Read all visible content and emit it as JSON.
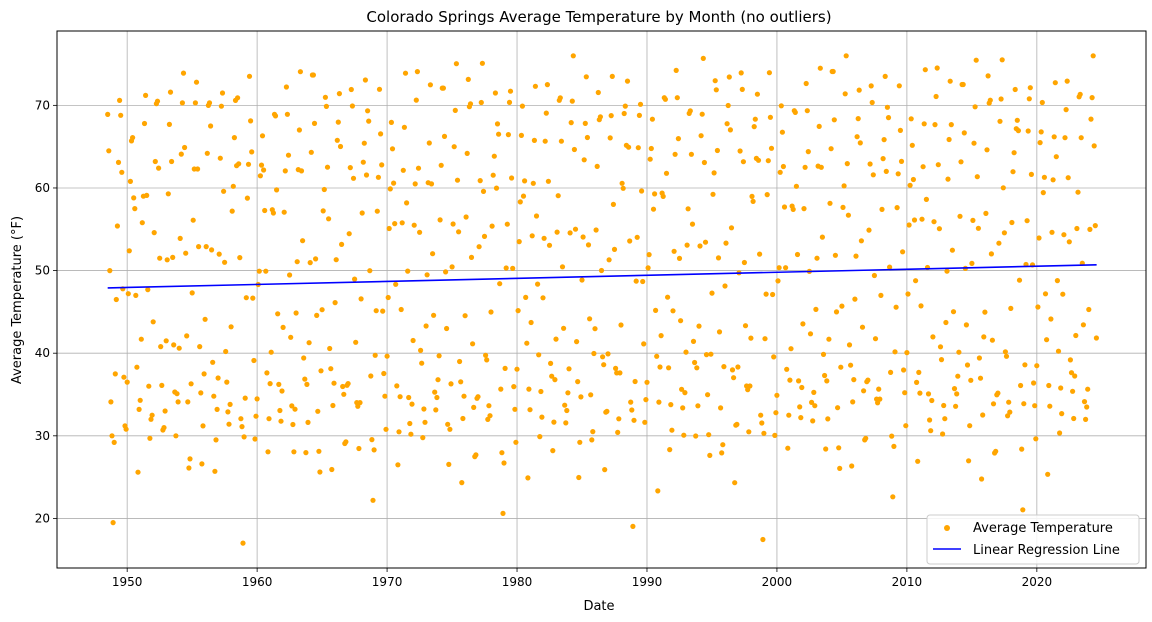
{
  "chart_data": {
    "type": "scatter",
    "title": "Colorado Springs Average Temperature by Month (no outliers)",
    "xlabel": "Date",
    "ylabel": "Average Temperature (°F)",
    "xlim": [
      1944.6,
      2028.4
    ],
    "ylim": [
      14.0,
      79.0
    ],
    "x_ticks": [
      1950,
      1960,
      1970,
      1980,
      1990,
      2000,
      2010,
      2020
    ],
    "y_ticks": [
      20,
      30,
      40,
      50,
      60,
      70
    ],
    "grid": true,
    "legend_position": "bottom-right",
    "colors": {
      "points": "#ffa500",
      "regression": "#0000ff"
    },
    "series": [
      {
        "name": "Average Temperature",
        "kind": "scatter",
        "points_per_year": 12,
        "start_year": 1948.5,
        "values": [
          68.9,
          64.5,
          50.0,
          34.1,
          30.0,
          19.5,
          29.2,
          37.5,
          46.5,
          55.4,
          63.1,
          70.6,
          68.8,
          61.9,
          47.8,
          37.1,
          31.2,
          30.8,
          36.5,
          47.2,
          52.4,
          60.8,
          65.7,
          66.1,
          58.8,
          57.5,
          47.0,
          38.3,
          25.6,
          33.2,
          34.3,
          41.7,
          55.8,
          59.0,
          67.8,
          71.2,
          59.1,
          47.7,
          36.0,
          29.7,
          32.0,
          32.5,
          43.8,
          54.6,
          63.2,
          70.2,
          70.5,
          62.4,
          51.5,
          40.8,
          36.1,
          30.7,
          31.0,
          33.0,
          41.5,
          51.3,
          59.3,
          67.7,
          71.6,
          63.2,
          51.6,
          41.0,
          35.3,
          30.0,
          35.1,
          34.1,
          40.6,
          53.9,
          64.1,
          70.3,
          73.9,
          64.9,
          52.1,
          42.1,
          34.1,
          26.1,
          27.2,
          36.3,
          47.3,
          56.1,
          62.3,
          70.3,
          72.8,
          62.3,
          52.9,
          40.8,
          35.2,
          26.6,
          31.2,
          37.5,
          44.1,
          52.9,
          64.2,
          70.0,
          70.3,
          67.5,
          52.5,
          38.9,
          34.8,
          25.7,
          29.5,
          33.2,
          37.0,
          52.0,
          63.6,
          69.9,
          71.5,
          59.6,
          51.0,
          40.2,
          36.5,
          32.9,
          31.4,
          33.8,
          43.2,
          57.2,
          60.2,
          66.1,
          70.6,
          62.7
        ]
      },
      {
        "name": "Linear Regression Line",
        "kind": "line",
        "x": [
          1948.5,
          2024.6
        ],
        "y": [
          47.9,
          50.7
        ]
      }
    ]
  }
}
